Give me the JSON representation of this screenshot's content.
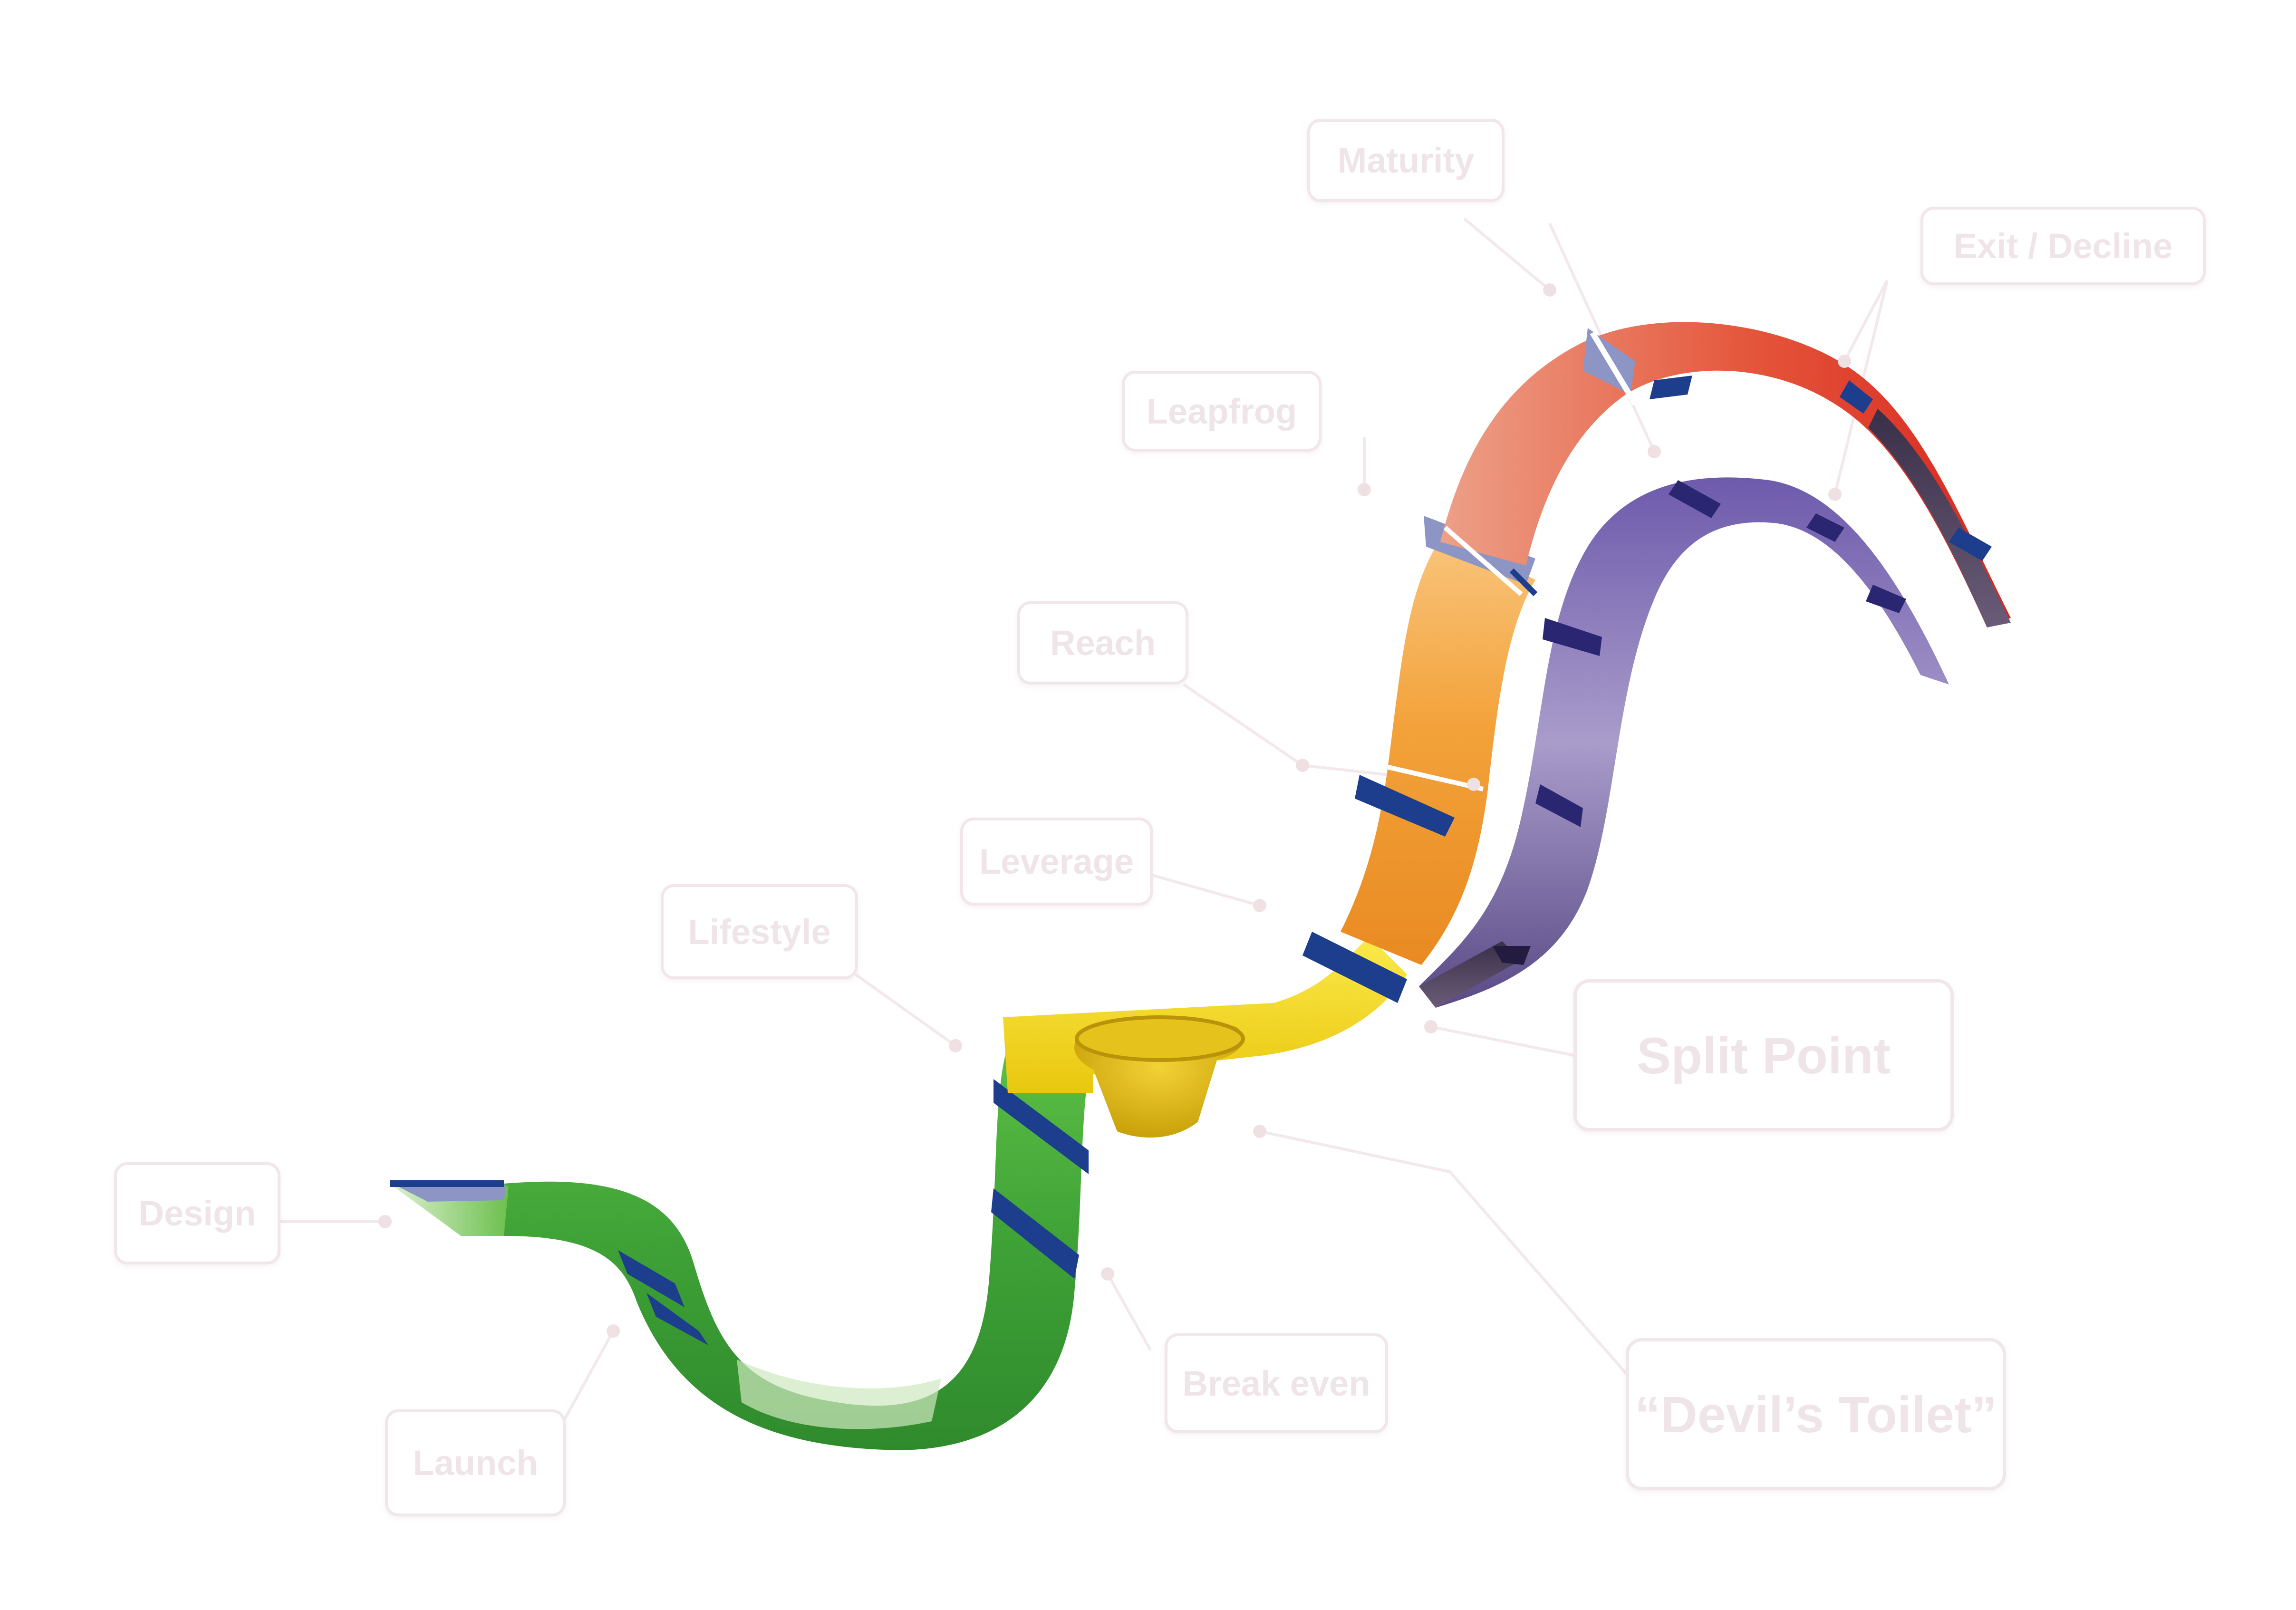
{
  "diagram": {
    "stages": {
      "design": "Design",
      "launch": "Launch",
      "lifestyle": "Lifestyle",
      "leverage": "Leverage",
      "reach": "Reach",
      "leapfrog": "Leapfrog",
      "maturity": "Maturity",
      "exit_decline": "Exit / Decline",
      "break_even": "Break even",
      "split_point": "Split Point",
      "devils_toilet": "“Devil’s Toilet”"
    },
    "colors": {
      "green": "#4caf3c",
      "yellow": "#f7dc1a",
      "orange": "#f0982c",
      "salmon": "#eda088",
      "red": "#df2a22",
      "purple": "#7867b3",
      "lavender": "#a89ac9",
      "dark_purple": "#4c3e5c",
      "stripe_blue": "#1c3e8c",
      "stripe_light": "#8c95c4",
      "label_text": "#efe5e8",
      "label_border": "#f1e6e9"
    }
  }
}
